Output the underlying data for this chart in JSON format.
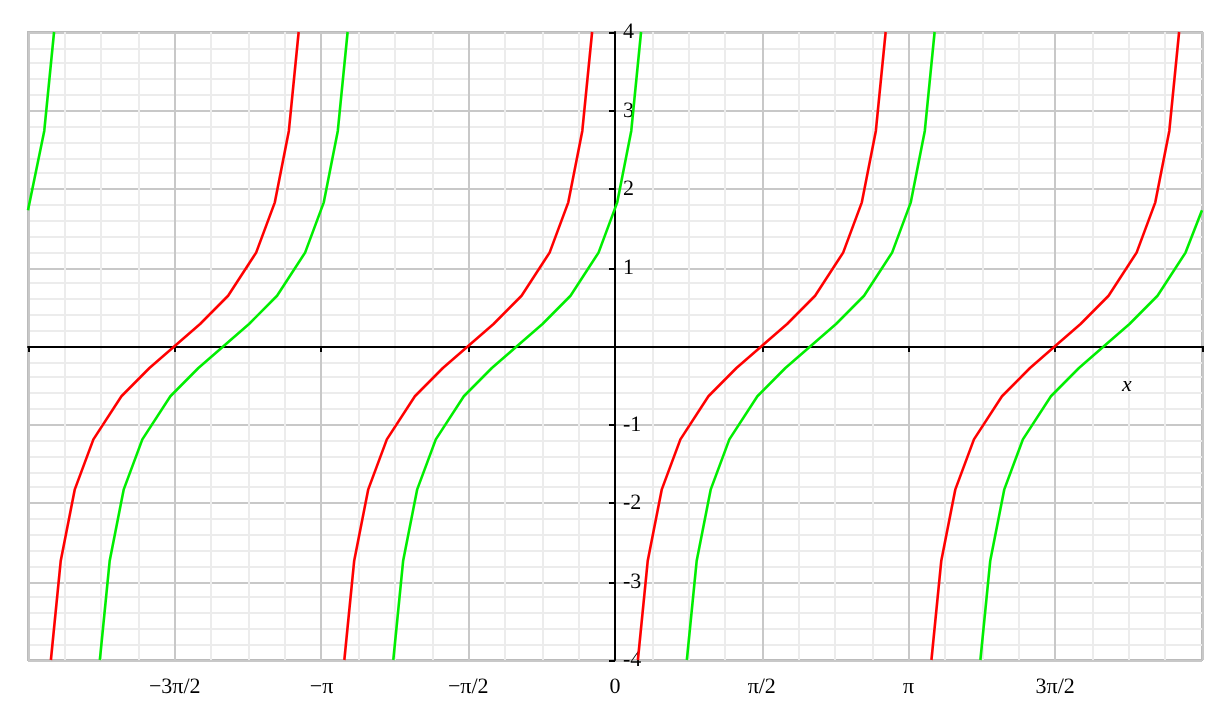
{
  "chart_data": {
    "type": "line",
    "xlabel": "x",
    "xlim": [
      -6.283,
      6.283
    ],
    "ylim": [
      -4,
      4
    ],
    "xticks": [
      {
        "value": -6.283,
        "label": null
      },
      {
        "value": -4.712,
        "label": "−3π/2"
      },
      {
        "value": -3.1416,
        "label": "−π"
      },
      {
        "value": -1.571,
        "label": "−π/2"
      },
      {
        "value": 0,
        "label": "0"
      },
      {
        "value": 1.571,
        "label": "π/2"
      },
      {
        "value": 3.1416,
        "label": "π"
      },
      {
        "value": 4.712,
        "label": "3π/2"
      },
      {
        "value": 6.283,
        "label": null
      }
    ],
    "yticks": [
      -4,
      -3,
      -2,
      -1,
      1,
      2,
      3,
      4
    ],
    "grid": true,
    "marker": "none",
    "line_style": "solid",
    "series": [
      {
        "color": "#ff0000",
        "x": [
          -6.038,
          -5.933,
          -5.783,
          -5.583,
          -5.283,
          -4.983,
          -4.712,
          -4.441,
          -4.141,
          -3.841,
          -3.641,
          -3.491,
          -3.386,
          -3.1416,
          -2.897,
          -2.792,
          -2.642,
          -2.442,
          -2.142,
          -1.842,
          -1.571,
          -1.3,
          -1.0,
          -0.7,
          -0.5,
          -0.35,
          -0.245,
          0,
          0.245,
          0.35,
          0.5,
          0.7,
          1.0,
          1.3,
          1.571,
          1.842,
          2.142,
          2.442,
          2.642,
          2.792,
          2.897,
          3.1416,
          3.387,
          3.492,
          3.642,
          3.842,
          4.142,
          4.442,
          4.712,
          4.983,
          5.283,
          5.583,
          5.783,
          5.933,
          6.038
        ],
        "values": [
          -4,
          -2.74,
          -1.83,
          -1.19,
          -0.64,
          -0.28,
          0,
          0.28,
          0.64,
          1.19,
          1.83,
          2.74,
          4,
          null,
          -4,
          -2.74,
          -1.83,
          -1.19,
          -0.64,
          -0.28,
          0,
          0.28,
          0.64,
          1.19,
          1.83,
          2.74,
          4,
          null,
          -4,
          -2.74,
          -1.83,
          -1.19,
          -0.64,
          -0.28,
          0,
          0.28,
          0.64,
          1.19,
          1.83,
          2.74,
          4,
          null,
          -4,
          -2.74,
          -1.83,
          -1.19,
          -0.64,
          -0.28,
          0,
          0.28,
          0.64,
          1.19,
          1.83,
          2.74,
          4
        ]
      },
      {
        "color": "#00ee00",
        "x": [
          -6.283,
          -6.109,
          -6.004,
          -5.76,
          -5.514,
          -5.409,
          -5.259,
          -5.059,
          -4.759,
          -4.459,
          -4.188,
          -3.917,
          -3.617,
          -3.317,
          -3.117,
          -2.967,
          -2.862,
          -2.62,
          -2.373,
          -2.268,
          -2.118,
          -1.918,
          -1.618,
          -1.318,
          -1.047,
          -0.776,
          -0.476,
          -0.176,
          0.024,
          0.174,
          0.279,
          0.52,
          0.769,
          0.874,
          1.024,
          1.224,
          1.524,
          1.824,
          2.095,
          2.366,
          2.666,
          2.966,
          3.166,
          3.316,
          3.421,
          3.67,
          3.911,
          4.016,
          4.166,
          4.366,
          4.666,
          4.966,
          5.236,
          5.507,
          5.807,
          6.107,
          6.283
        ],
        "values": [
          1.73,
          2.74,
          4,
          null,
          -4,
          -2.74,
          -1.83,
          -1.19,
          -0.64,
          -0.28,
          0,
          0.28,
          0.64,
          1.19,
          1.83,
          2.74,
          4,
          null,
          -4,
          -2.74,
          -1.83,
          -1.19,
          -0.64,
          -0.28,
          0,
          0.28,
          0.64,
          1.19,
          1.83,
          2.74,
          4,
          null,
          -4,
          -2.74,
          -1.83,
          -1.19,
          -0.64,
          -0.28,
          0,
          0.28,
          0.64,
          1.19,
          1.83,
          2.74,
          4,
          null,
          -4,
          -2.74,
          -1.83,
          -1.19,
          -0.64,
          -0.28,
          0,
          0.28,
          0.64,
          1.19,
          1.73
        ]
      }
    ]
  }
}
